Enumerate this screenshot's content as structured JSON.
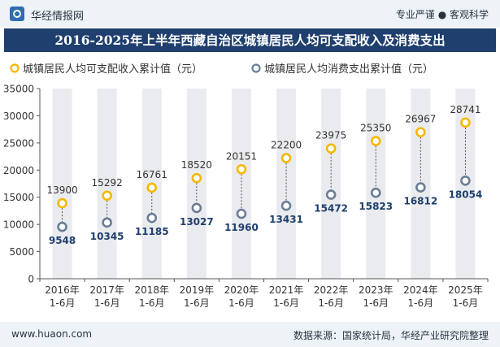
{
  "header": {
    "brand": "华经情报网",
    "slogan": "专业严谨 ● 客观科学"
  },
  "footer": {
    "site": "www.huaon.com",
    "source": "数据来源：国家统计局，华经产业研究院整理"
  },
  "colors": {
    "series_income": "#f5b800",
    "series_consumption": "#6b7d95",
    "title_bg": "#1f3f6e",
    "column_bg": "#e9ebee"
  },
  "chart_data": {
    "type": "line",
    "title": "2016-2025年上半年西藏自治区城镇居民人均可支配收入及消费支出",
    "categories": [
      "2016年\n1-6月",
      "2017年\n1-6月",
      "2018年\n1-6月",
      "2019年\n1-6月",
      "2020年\n1-6月",
      "2021年\n1-6月",
      "2022年\n1-6月",
      "2023年\n1-6月",
      "2024年\n1-6月",
      "2025年\n1-6月"
    ],
    "series": [
      {
        "name": "城镇居民人均可支配收入累计值（元）",
        "values": [
          13900,
          15292,
          16761,
          18520,
          20151,
          22200,
          23975,
          25350,
          26967,
          28741
        ]
      },
      {
        "name": "城镇居民人均消费支出累计值（元）",
        "values": [
          9548,
          10345,
          11185,
          13027,
          11960,
          13431,
          15472,
          15823,
          16812,
          18054
        ]
      }
    ],
    "ylim": [
      0,
      35000
    ],
    "yticks": [
      0,
      5000,
      10000,
      15000,
      20000,
      25000,
      30000,
      35000
    ],
    "grid": false,
    "legend": "top-left",
    "xlabel": "",
    "ylabel": ""
  }
}
